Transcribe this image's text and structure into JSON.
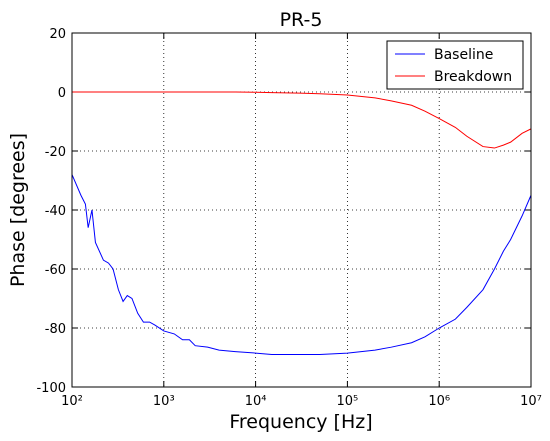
{
  "chart_data": {
    "type": "line",
    "title": "PR-5",
    "x_label": "Frequency [Hz]",
    "y_label": "Phase [degrees]",
    "x": [
      100,
      125,
      140,
      150,
      165,
      180,
      220,
      250,
      280,
      320,
      360,
      400,
      450,
      520,
      600,
      700,
      800,
      1000,
      1300,
      1600,
      1900,
      2200,
      3000,
      4000,
      6000,
      10000,
      15000,
      30000,
      50000,
      100000,
      200000,
      300000,
      500000,
      700000,
      1000000,
      1500000,
      2000000,
      3000000,
      4000000,
      5000000,
      6000000,
      8000000,
      10000000
    ],
    "series": [
      {
        "name": "Baseline",
        "color": "#0000ff",
        "values": [
          -28,
          -35,
          -38,
          -46,
          -40,
          -51,
          -57,
          -58,
          -60,
          -67,
          -71,
          -69,
          -70,
          -75,
          -78,
          -78,
          -79,
          -81,
          -82,
          -84,
          -84,
          -86,
          -86.5,
          -87.5,
          -88,
          -88.5,
          -89,
          -89,
          -89,
          -88.5,
          -87.5,
          -86.5,
          -85,
          -83,
          -80,
          -77,
          -73,
          -67,
          -60,
          -54,
          -50,
          -42,
          -35
        ]
      },
      {
        "name": "Breakdown",
        "color": "#ff0000",
        "values": [
          0,
          0,
          0,
          0,
          0,
          0,
          0,
          0,
          0,
          0,
          0,
          0,
          0,
          0,
          0,
          0,
          0,
          0,
          0,
          0,
          0,
          0,
          0,
          0,
          0,
          -0.1,
          -0.2,
          -0.4,
          -0.6,
          -1,
          -2,
          -3,
          -4.5,
          -6.5,
          -9,
          -12,
          -15,
          -18.5,
          -19,
          -18,
          -17,
          -14,
          -12.5
        ]
      }
    ],
    "log_x": true,
    "xlim": [
      100,
      10000000
    ],
    "xticks": [
      {
        "value": 100,
        "label": "10²"
      },
      {
        "value": 1000,
        "label": "10³"
      },
      {
        "value": 10000,
        "label": "10⁴"
      },
      {
        "value": 100000,
        "label": "10⁵"
      },
      {
        "value": 1000000,
        "label": "10⁶"
      },
      {
        "value": 10000000,
        "label": "10⁷"
      }
    ],
    "ylim": [
      -100,
      20
    ],
    "yticks": [
      -100,
      -80,
      -60,
      -40,
      -20,
      0,
      20
    ],
    "grid": true,
    "legend": "upper right"
  }
}
